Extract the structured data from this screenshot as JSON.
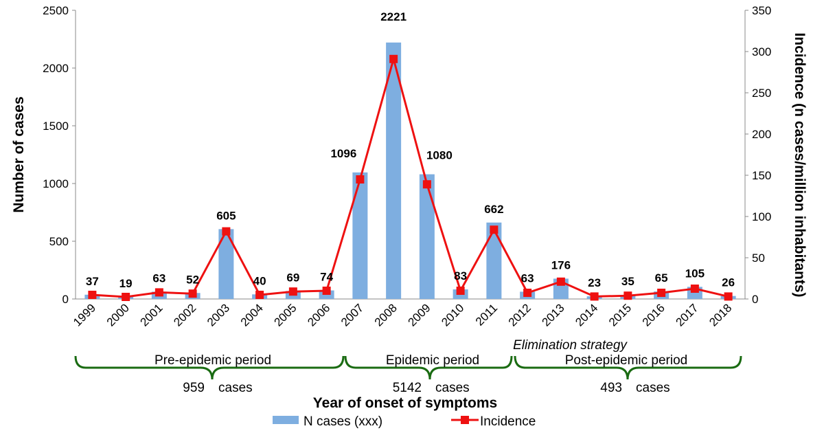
{
  "chart_data": {
    "type": "bar+line",
    "categories": [
      "1999",
      "2000",
      "2001",
      "2002",
      "2003",
      "2004",
      "2005",
      "2006",
      "2007",
      "2008",
      "2009",
      "2010",
      "2011",
      "2012",
      "2013",
      "2014",
      "2015",
      "2016",
      "2017",
      "2018"
    ],
    "series": [
      {
        "name": "N cases (xxx)",
        "type": "bar",
        "axis": "left",
        "color": "#7eaee0",
        "values": [
          37,
          19,
          63,
          52,
          605,
          40,
          69,
          74,
          1096,
          2221,
          1080,
          83,
          662,
          63,
          176,
          23,
          35,
          65,
          105,
          26
        ],
        "labels": [
          "37",
          "19",
          "63",
          "52",
          "605",
          "40",
          "69",
          "74",
          "1096",
          "2221",
          "1080",
          "83",
          "662",
          "63",
          "176",
          "23",
          "35",
          "65",
          "105",
          "26"
        ]
      },
      {
        "name": "Incidence",
        "type": "line",
        "axis": "right",
        "color": "#ee1111",
        "values": [
          5,
          2.5,
          8,
          6.5,
          82,
          5,
          9,
          10,
          145,
          291,
          139,
          10,
          84,
          7.5,
          21,
          3,
          4,
          7.5,
          12.5,
          3
        ]
      }
    ],
    "xlabel": "Year of onset of symptoms",
    "ylabel": "Number of cases",
    "y2label": "Incidence (n cases/million inhabitants)",
    "ylim": [
      0,
      2500
    ],
    "y2lim": [
      0,
      350
    ],
    "yticks": [
      "0",
      "500",
      "1000",
      "1500",
      "2000",
      "2500"
    ],
    "y2ticks": [
      "0",
      "50",
      "100",
      "150",
      "200",
      "250",
      "300",
      "350"
    ],
    "grid": false,
    "legend_position": "bottom"
  },
  "periods": [
    {
      "label": "Pre-epidemic period",
      "count": "959",
      "unit": "cases"
    },
    {
      "label": "Epidemic period",
      "count": "5142",
      "unit": "cases"
    },
    {
      "label": "Post-epidemic period",
      "count": "493",
      "unit": "cases"
    }
  ],
  "strategy_label": "Elimination strategy",
  "colors": {
    "bar": "#7eaee0",
    "line": "#ee1111",
    "brace": "#1a6b12"
  }
}
